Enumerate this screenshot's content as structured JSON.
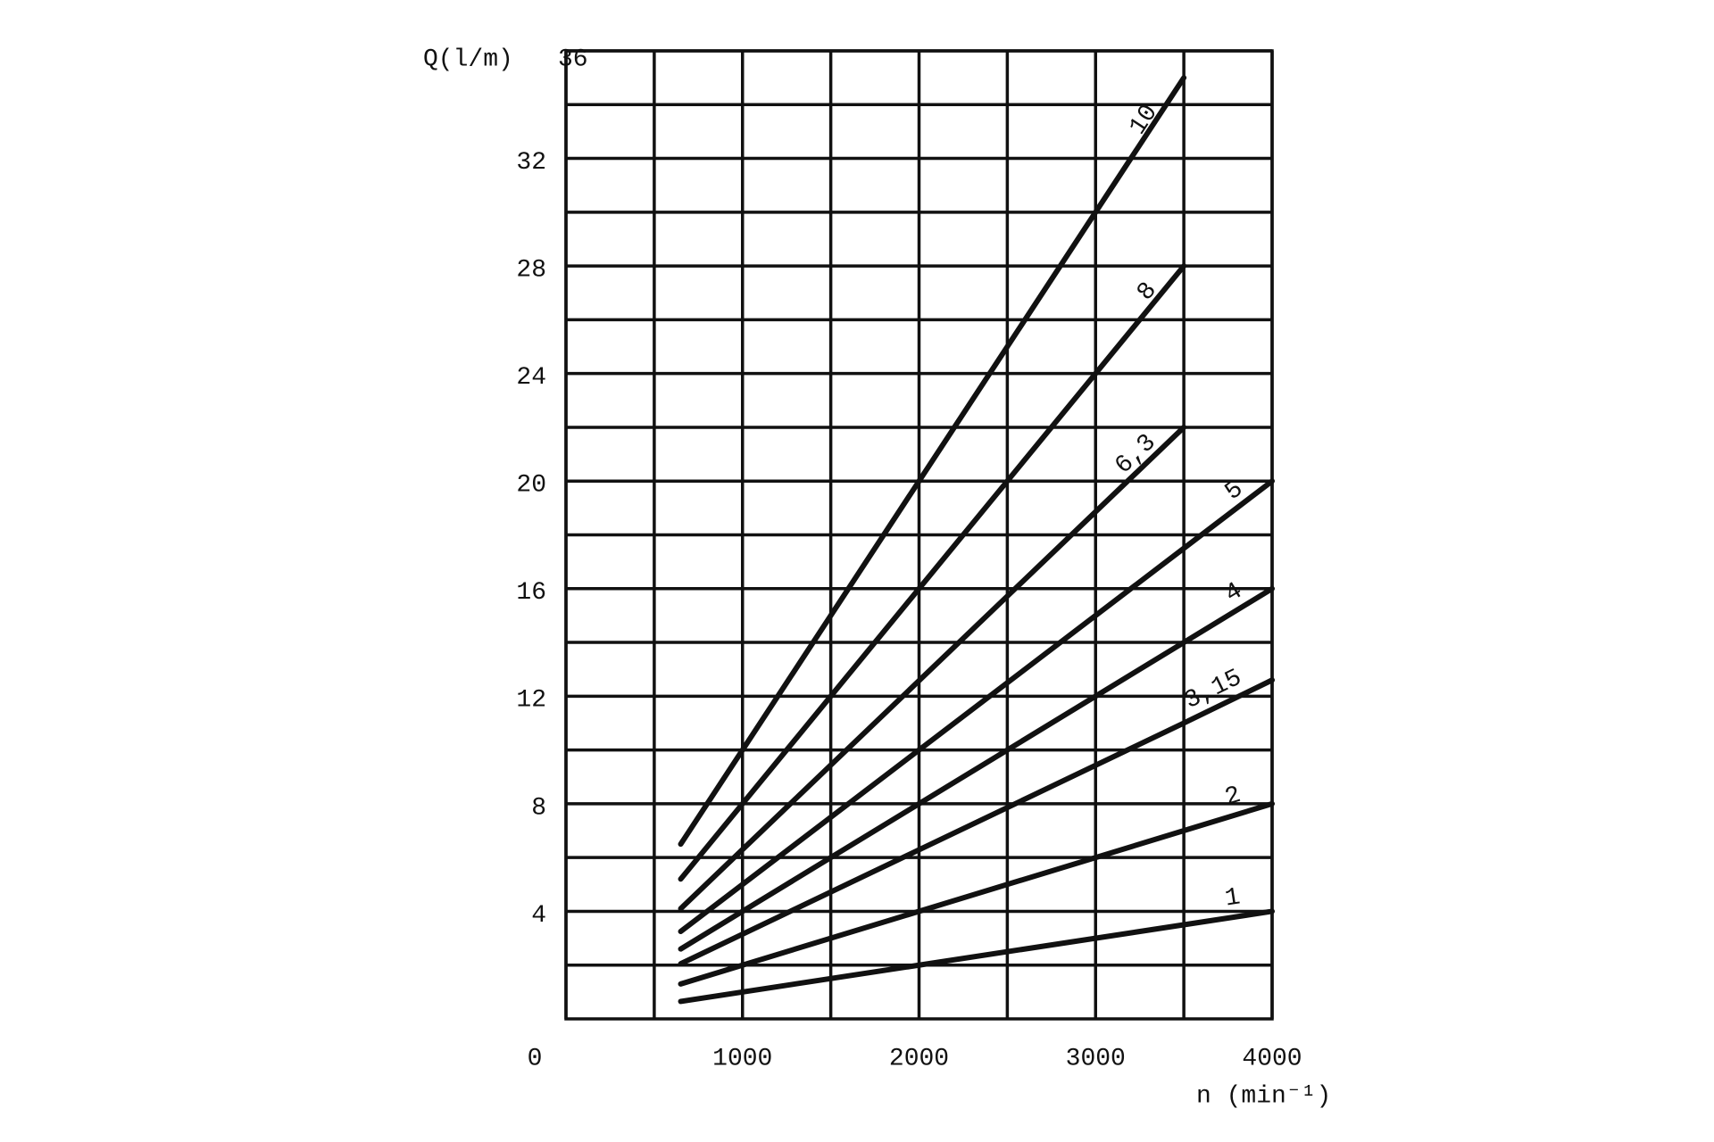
{
  "chart_data": {
    "type": "line",
    "y_label": "Q(l/m)",
    "x_label": "n (min⁻¹)",
    "x": [
      650,
      3500,
      4000
    ],
    "series": [
      {
        "name": "10",
        "color": "#111111",
        "values": [
          6.5,
          35,
          null
        ]
      },
      {
        "name": "8",
        "color": "#111111",
        "values": [
          5.2,
          28,
          null
        ]
      },
      {
        "name": "6,3",
        "color": "#111111",
        "values": [
          4.1,
          22,
          null
        ]
      },
      {
        "name": "5",
        "color": "#111111",
        "values": [
          3.25,
          17.5,
          20
        ]
      },
      {
        "name": "4",
        "color": "#111111",
        "values": [
          2.6,
          14,
          16
        ]
      },
      {
        "name": "3,15",
        "color": "#111111",
        "values": [
          2.05,
          11,
          12.6
        ]
      },
      {
        "name": "2",
        "color": "#111111",
        "values": [
          1.3,
          7,
          8
        ]
      },
      {
        "name": "1",
        "color": "#111111",
        "values": [
          0.65,
          3.5,
          4
        ]
      }
    ],
    "xlim": [
      0,
      4000
    ],
    "ylim": [
      0,
      36
    ],
    "xticks": [
      0,
      1000,
      2000,
      3000,
      4000
    ],
    "yticks": [
      4,
      8,
      12,
      16,
      20,
      24,
      28,
      32,
      36
    ],
    "grid": true
  }
}
